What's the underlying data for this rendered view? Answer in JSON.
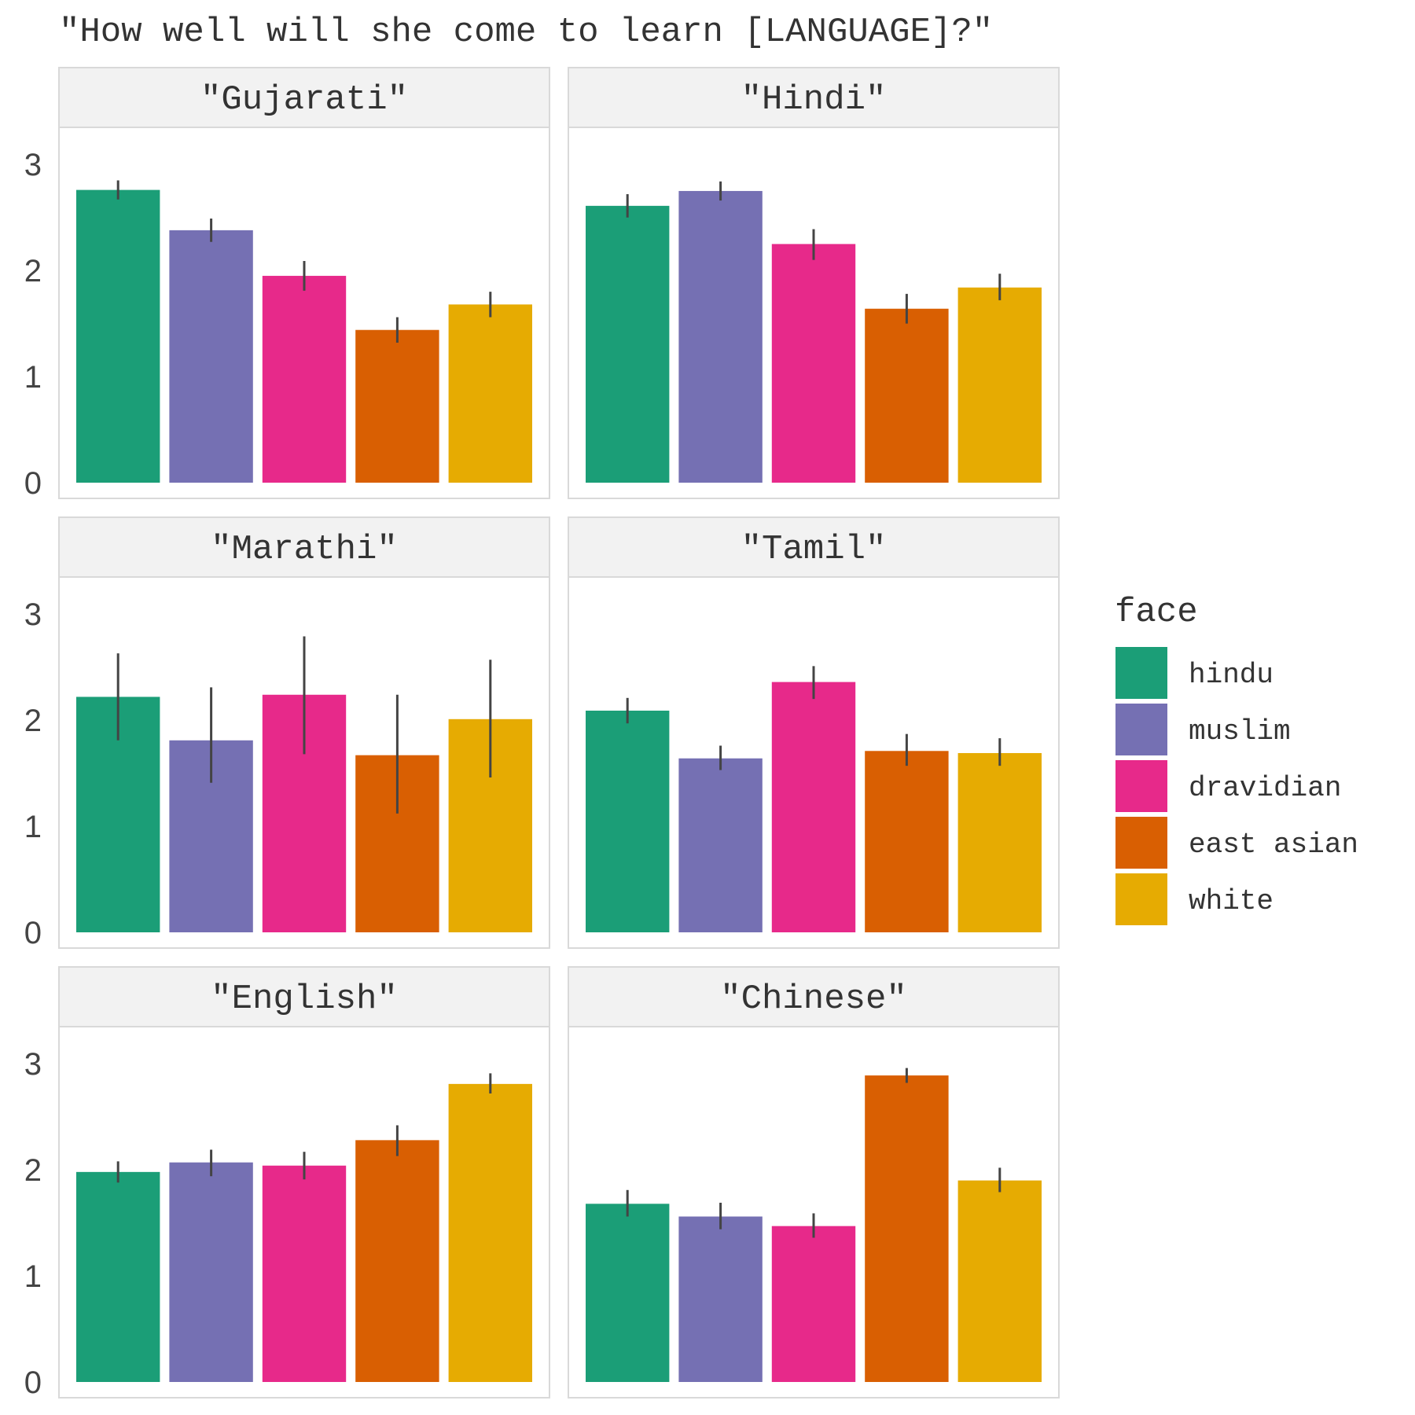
{
  "chart_data": {
    "type": "bar",
    "title": "\"How well will she come to learn [LANGUAGE]?\"",
    "ylim": [
      0,
      3.35
    ],
    "y_ticks": [
      "0",
      "1",
      "2",
      "3"
    ],
    "grid": false,
    "legend_position": "right",
    "legend": {
      "title": "face",
      "entries": [
        {
          "label": "hindu",
          "color": "#1b9e77"
        },
        {
          "label": "muslim",
          "color": "#7570b3"
        },
        {
          "label": "dravidian",
          "color": "#e7298a"
        },
        {
          "label": "east asian",
          "color": "#d95f02"
        },
        {
          "label": "white",
          "color": "#e6ab02"
        }
      ]
    },
    "categories": [
      "hindu",
      "muslim",
      "dravidian",
      "east asian",
      "white"
    ],
    "panels": [
      {
        "name": "\"Gujarati\"",
        "values": [
          2.76,
          2.38,
          1.95,
          1.44,
          1.68
        ],
        "err_low": [
          2.67,
          2.27,
          1.81,
          1.32,
          1.56
        ],
        "err_high": [
          2.85,
          2.49,
          2.09,
          1.56,
          1.8
        ]
      },
      {
        "name": "\"Hindi\"",
        "values": [
          2.61,
          2.75,
          2.25,
          1.64,
          1.84
        ],
        "err_low": [
          2.5,
          2.66,
          2.1,
          1.5,
          1.72
        ],
        "err_high": [
          2.72,
          2.84,
          2.39,
          1.78,
          1.97
        ]
      },
      {
        "name": "\"Marathi\"",
        "values": [
          2.22,
          1.81,
          2.24,
          1.67,
          2.01
        ],
        "err_low": [
          1.81,
          1.41,
          1.68,
          1.12,
          1.46
        ],
        "err_high": [
          2.63,
          2.31,
          2.79,
          2.24,
          2.57
        ]
      },
      {
        "name": "\"Tamil\"",
        "values": [
          2.09,
          1.64,
          2.36,
          1.71,
          1.69
        ],
        "err_low": [
          1.97,
          1.53,
          2.2,
          1.57,
          1.57
        ],
        "err_high": [
          2.21,
          1.76,
          2.51,
          1.87,
          1.83
        ]
      },
      {
        "name": "\"English\"",
        "values": [
          1.98,
          2.07,
          2.04,
          2.28,
          2.81
        ],
        "err_low": [
          1.88,
          1.94,
          1.91,
          2.13,
          2.72
        ],
        "err_high": [
          2.08,
          2.19,
          2.17,
          2.42,
          2.91
        ]
      },
      {
        "name": "\"Chinese\"",
        "values": [
          1.68,
          1.56,
          1.47,
          2.89,
          1.9
        ],
        "err_low": [
          1.56,
          1.44,
          1.36,
          2.82,
          1.79
        ],
        "err_high": [
          1.81,
          1.69,
          1.59,
          2.96,
          2.02
        ]
      }
    ]
  }
}
